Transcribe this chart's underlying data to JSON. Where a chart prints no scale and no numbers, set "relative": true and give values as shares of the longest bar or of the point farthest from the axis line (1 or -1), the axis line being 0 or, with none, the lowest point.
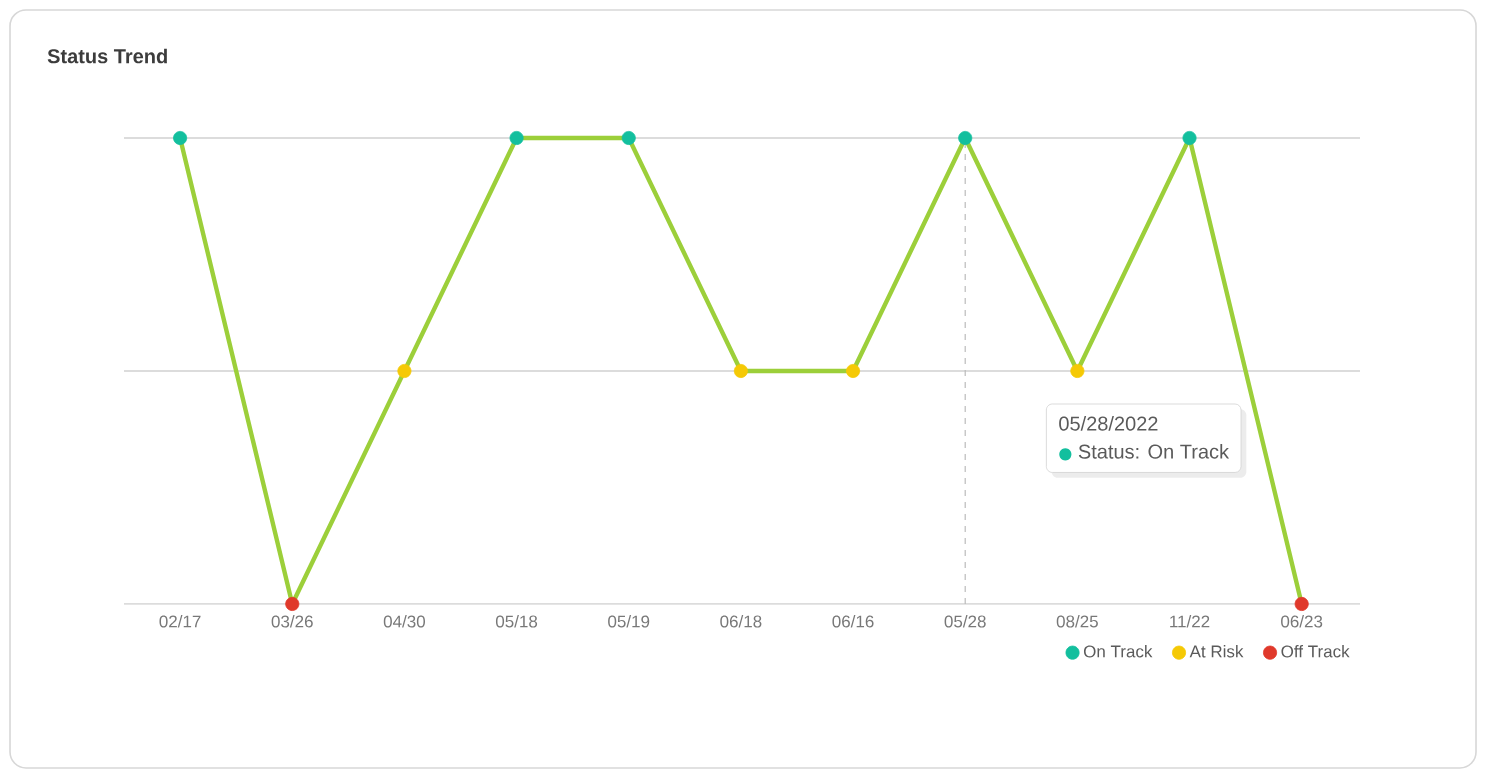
{
  "chart_data": {
    "type": "line",
    "title": "Status Trend",
    "relative": true,
    "legend": "bottom right",
    "categories": [
      "02/17",
      "03/26",
      "04/30",
      "05/18",
      "05/19",
      "06/18",
      "06/16",
      "05/28",
      "08/25",
      "11/22",
      "06/23"
    ],
    "series": [
      {
        "type": "line",
        "color": "#9ccf3a",
        "marker": "none",
        "values": [
          1,
          0,
          0.5,
          1,
          1,
          0.5,
          0.5,
          1,
          0.5,
          1,
          0
        ]
      },
      {
        "type": "scatter",
        "name": "On Track",
        "color": "#13bf9e",
        "values": [
          1,
          null,
          null,
          1,
          1,
          null,
          null,
          1,
          null,
          1,
          null
        ]
      },
      {
        "type": "scatter",
        "name": "At Risk",
        "color": "#f5c905",
        "values": [
          null,
          null,
          0.5,
          null,
          null,
          0.5,
          0.5,
          null,
          0.5,
          null,
          null
        ]
      },
      {
        "type": "scatter",
        "name": "Off Track",
        "color": "#e0392b",
        "values": [
          null,
          0,
          null,
          null,
          null,
          null,
          null,
          null,
          null,
          null,
          0
        ]
      }
    ],
    "ref_lines": [
      {
        "axis": "y",
        "value": 1,
        "color": "#dcdcdc",
        "line_style": "solid"
      },
      {
        "axis": "y",
        "value": 0.5,
        "color": "#dcdcdc",
        "line_style": "solid"
      },
      {
        "axis": "x",
        "value": "05/28",
        "color": "#bbbbbb",
        "line_style": "dashed"
      }
    ],
    "annotations": [
      "05/28/2022",
      "●",
      "Status: On Track"
    ]
  }
}
